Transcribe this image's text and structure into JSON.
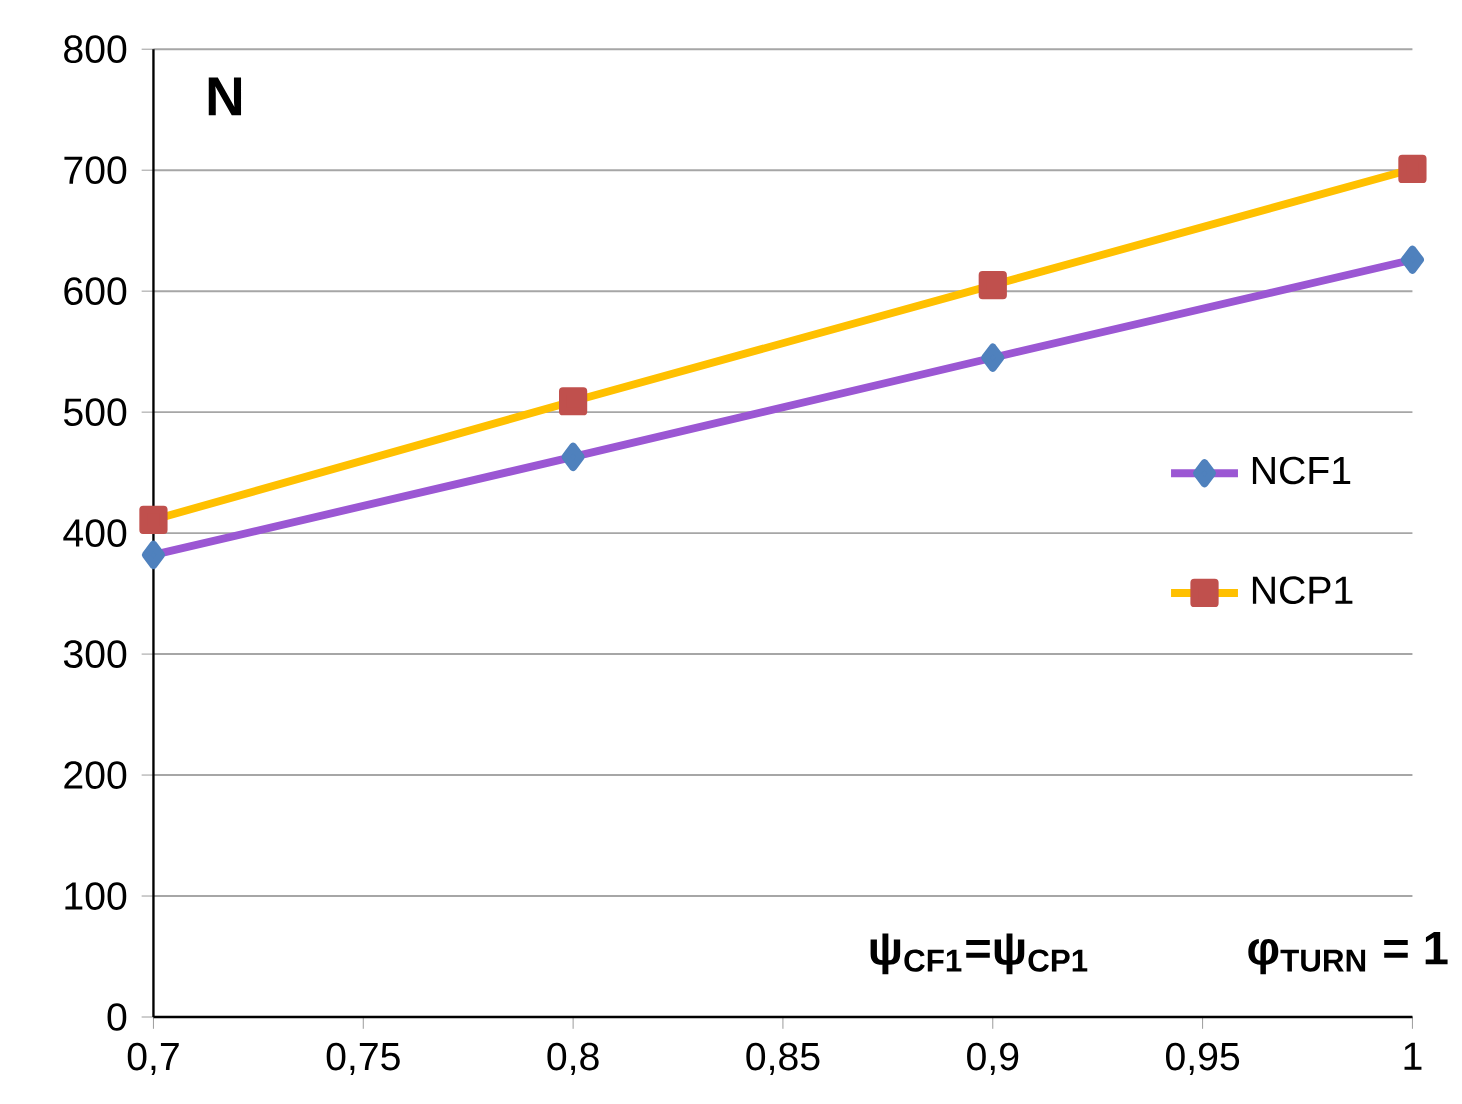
{
  "chart_data": {
    "type": "line",
    "x": [
      0.7,
      0.8,
      0.9,
      1
    ],
    "series": [
      {
        "name": "NCF1",
        "color": "#9b57d3",
        "colors": [
          "#4f81bd",
          "#4f81bd",
          "#4f81bd",
          "#4f81bd"
        ],
        "marker": "diamond",
        "values": [
          382,
          463,
          545,
          626
        ]
      },
      {
        "name": "NCP1",
        "color": "#ffc000",
        "colors": [
          "#c0504d",
          "#c0504d",
          "#c0504d",
          "#c0504d"
        ],
        "marker": "square",
        "values": [
          411,
          509,
          605,
          701
        ]
      }
    ],
    "xlim": [
      0.7,
      1
    ],
    "ylim": [
      0,
      800
    ],
    "xticks": [
      {
        "value": 0.7,
        "label": "0,7"
      },
      {
        "value": 0.75,
        "label": "0,75"
      },
      {
        "value": 0.8,
        "label": "0,8"
      },
      {
        "value": 0.85,
        "label": "0,85"
      },
      {
        "value": 0.9,
        "label": "0,9"
      },
      {
        "value": 0.95,
        "label": "0,95"
      },
      {
        "value": 1,
        "label": "1"
      }
    ],
    "yticks": [
      0,
      100,
      200,
      300,
      400,
      500,
      600,
      700,
      800
    ],
    "grid": "y",
    "legend": "right",
    "line_style": "solid",
    "annotations": [
      "N",
      "ψ$_{CF1}$=ψ$_{CP1}$",
      "φ$_{TURN}$ = 1"
    ]
  }
}
